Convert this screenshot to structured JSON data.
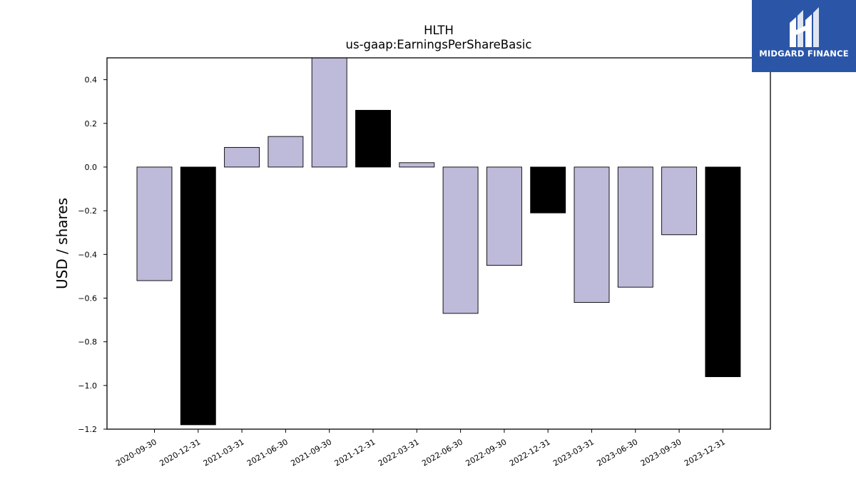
{
  "chart_data": {
    "type": "bar",
    "title": "HLTH",
    "subtitle": "us-gaap:EarningsPerShareBasic",
    "xlabel": "",
    "ylabel": "USD / shares",
    "ylim": [
      -1.2,
      0.5
    ],
    "yticks": [
      -1.2,
      -1.0,
      -0.8,
      -0.6,
      -0.4,
      -0.2,
      0.0,
      0.2,
      0.4
    ],
    "grid": false,
    "categories": [
      "2020-09-30",
      "2020-12-31",
      "2021-03-31",
      "2021-06-30",
      "2021-09-30",
      "2021-12-31",
      "2022-03-31",
      "2022-06-30",
      "2022-09-30",
      "2022-12-31",
      "2023-03-31",
      "2023-06-30",
      "2023-09-30",
      "2023-12-31"
    ],
    "values": [
      -0.52,
      -1.18,
      0.09,
      0.14,
      0.53,
      0.26,
      0.02,
      -0.67,
      -0.45,
      -0.21,
      -0.62,
      -0.55,
      -0.31,
      -0.96
    ],
    "bar_colors": [
      "#bebad9",
      "#000000",
      "#bebad9",
      "#bebad9",
      "#bebad9",
      "#000000",
      "#bebad9",
      "#bebad9",
      "#bebad9",
      "#000000",
      "#bebad9",
      "#bebad9",
      "#bebad9",
      "#000000"
    ]
  },
  "logo": {
    "text": "MIDGARD FINANCE",
    "background": "#2b56a8",
    "icon": "midgard-logo-icon"
  }
}
